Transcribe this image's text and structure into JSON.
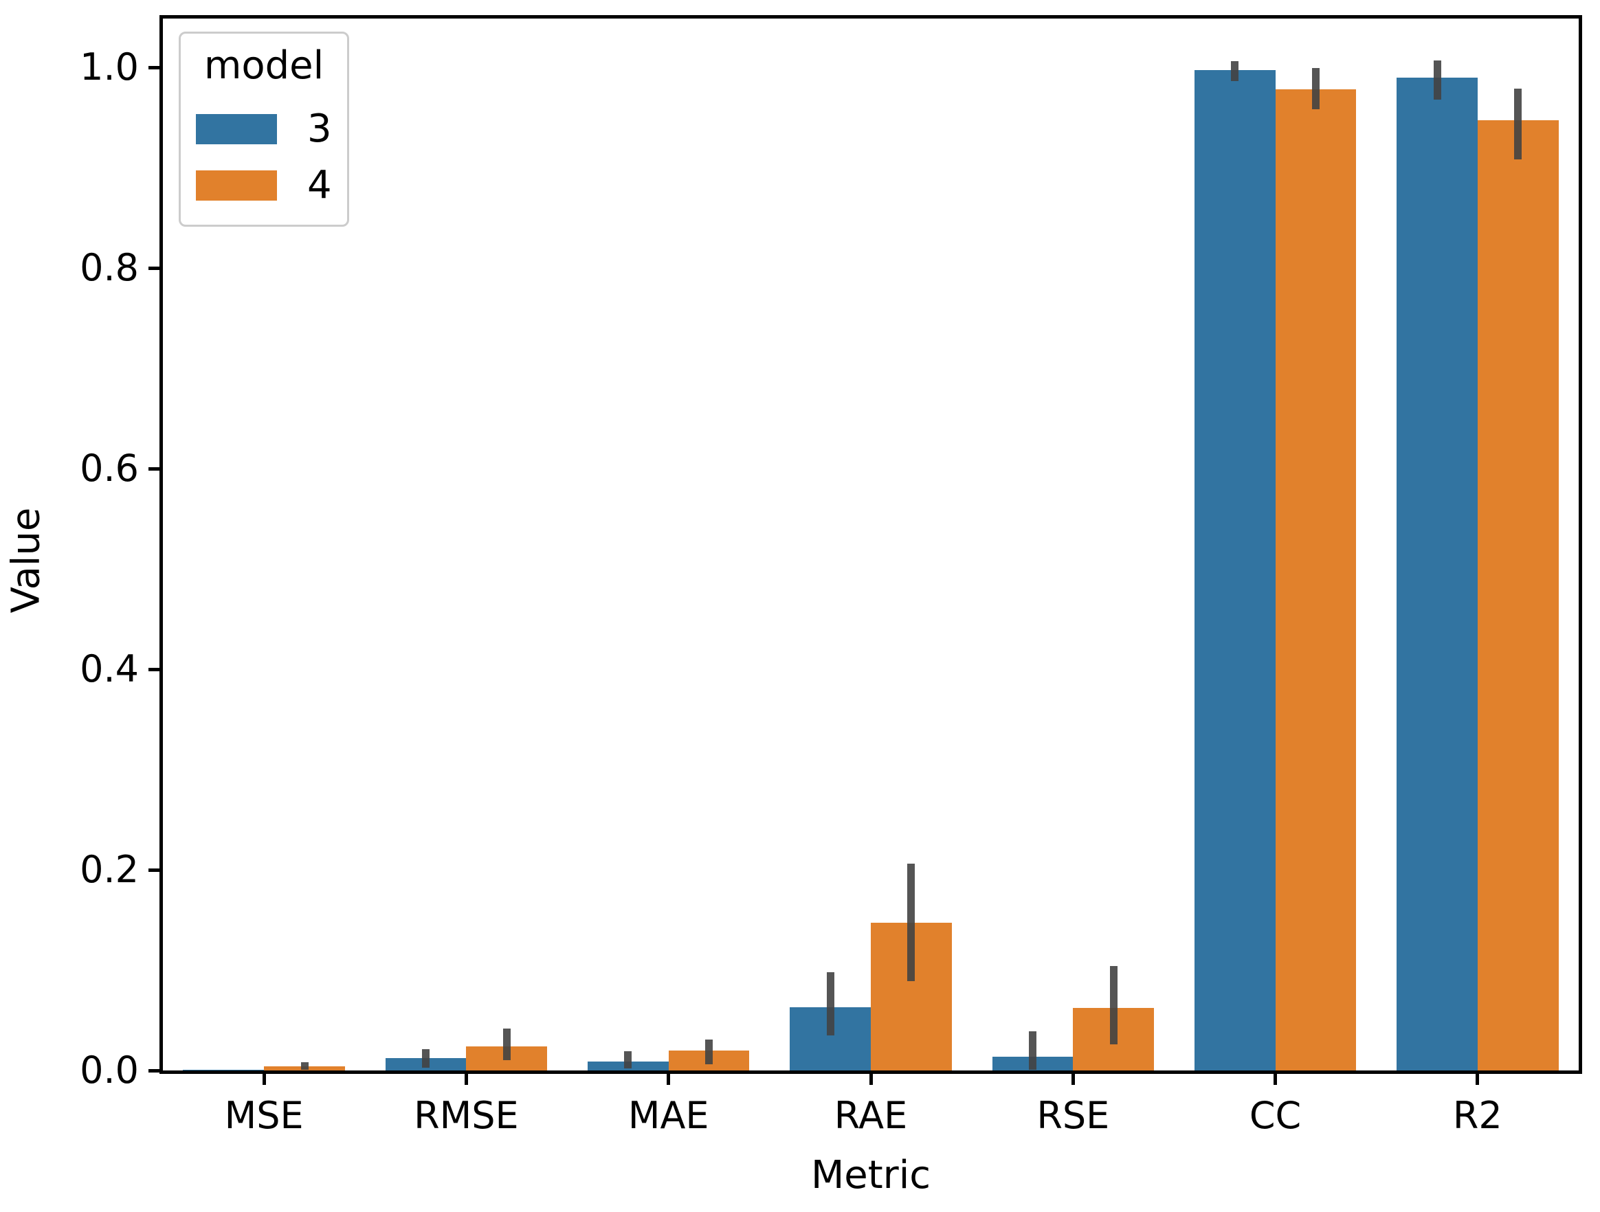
{
  "axes": {
    "ylabel": "Value",
    "xlabel": "Metric",
    "ytick_labels": [
      "0.0",
      "0.2",
      "0.4",
      "0.6",
      "0.8",
      "1.0"
    ]
  },
  "legend": {
    "title": "model",
    "entries": [
      {
        "label": "3",
        "color": "#3274a1"
      },
      {
        "label": "4",
        "color": "#e1812c"
      }
    ]
  },
  "chart_data": {
    "type": "bar",
    "title": "",
    "xlabel": "Metric",
    "ylabel": "Value",
    "ylim": [
      0,
      1.05
    ],
    "grid": false,
    "legend_position": "upper left",
    "legend_title": "model",
    "categories": [
      "MSE",
      "RMSE",
      "MAE",
      "RAE",
      "RSE",
      "CC",
      "R2"
    ],
    "series": [
      {
        "name": "3",
        "color": "#3274a1",
        "values": [
          0.0005,
          0.012,
          0.009,
          0.063,
          0.014,
          0.997,
          0.99
        ],
        "ci_low": [
          0.0,
          0.003,
          0.002,
          0.035,
          0.001,
          0.986,
          0.968
        ],
        "ci_high": [
          0.001,
          0.021,
          0.019,
          0.098,
          0.039,
          1.006,
          1.007
        ]
      },
      {
        "name": "4",
        "color": "#e1812c",
        "values": [
          0.004,
          0.024,
          0.02,
          0.147,
          0.062,
          0.978,
          0.947
        ],
        "ci_low": [
          0.001,
          0.01,
          0.006,
          0.089,
          0.026,
          0.958,
          0.908
        ],
        "ci_high": [
          0.008,
          0.042,
          0.031,
          0.206,
          0.104,
          0.999,
          0.979
        ]
      }
    ],
    "error_bars": true,
    "error_color": "#424242"
  }
}
